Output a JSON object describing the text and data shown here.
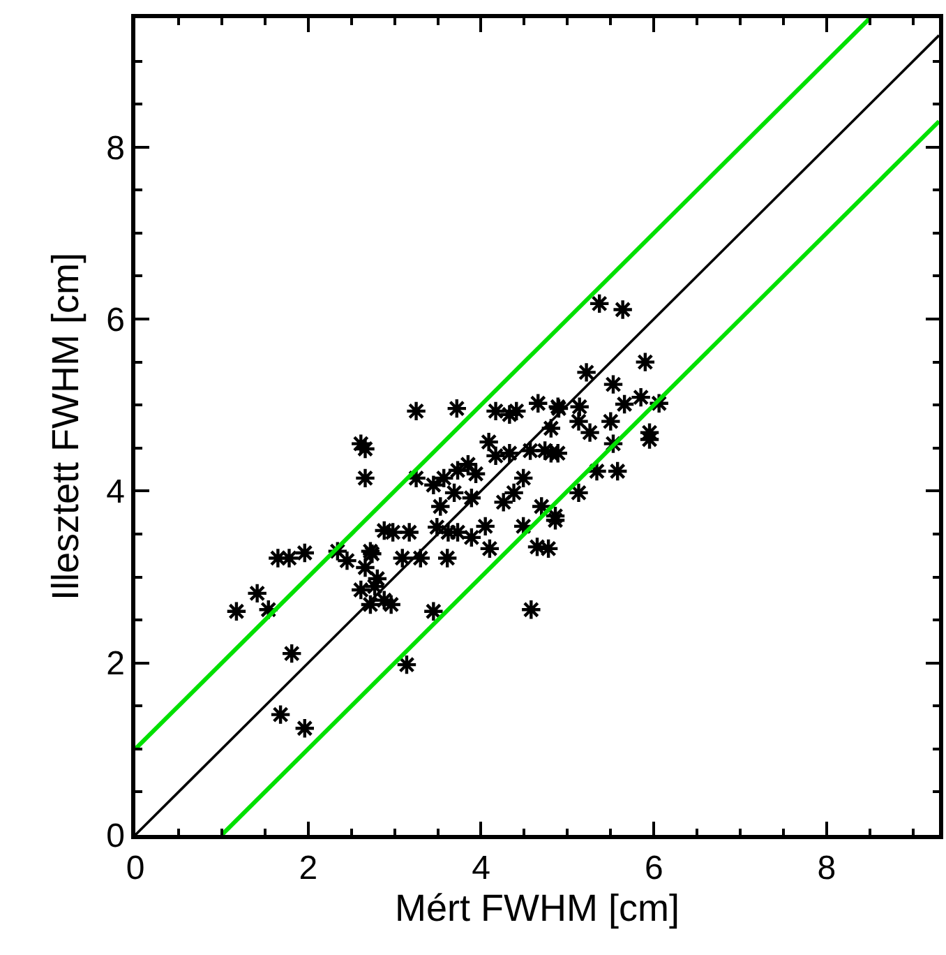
{
  "chart_data": {
    "type": "scatter",
    "xlabel": "Mért FWHM [cm]",
    "ylabel": "Illesztett FWHM [cm]",
    "xlim": [
      0,
      9.3
    ],
    "ylim": [
      0,
      9.5
    ],
    "xticks": [
      0,
      2,
      4,
      6,
      8
    ],
    "yticks": [
      0,
      2,
      4,
      6,
      8
    ],
    "grid": false,
    "series": [
      {
        "color": "#000000",
        "marker": "cross",
        "x": [
          1.17,
          1.41,
          1.54,
          1.81,
          1.68,
          1.96,
          1.65,
          1.78,
          1.96,
          2.34,
          2.45,
          2.72,
          2.66,
          2.61,
          2.66,
          2.66,
          3.25,
          3.72,
          4.17,
          4.33,
          4.41,
          4.66,
          4.89,
          3.25,
          2.61,
          2.77,
          2.88,
          2.72,
          2.96,
          2.8,
          2.74,
          2.88,
          2.98,
          3.17,
          3.09,
          3.3,
          3.61,
          3.45,
          3.14,
          4.58,
          3.49,
          3.62,
          3.73,
          3.89,
          4.05,
          4.1,
          3.45,
          3.57,
          3.73,
          3.85,
          3.94,
          3.53,
          3.69,
          3.89,
          4.09,
          4.17,
          4.33,
          4.49,
          4.38,
          4.26,
          4.57,
          4.74,
          4.89,
          4.81,
          4.7,
          4.86,
          4.49,
          4.65,
          4.78,
          5.37,
          5.64,
          5.9,
          5.22,
          5.53,
          4.9,
          5.14,
          5.66,
          5.85,
          6.06,
          5.13,
          5.26,
          5.5,
          5.95,
          5.95,
          4.81,
          5.53,
          5.34,
          5.58,
          5.13,
          4.86
        ],
        "values": [
          2.6,
          2.81,
          2.62,
          2.11,
          1.4,
          1.24,
          3.22,
          3.22,
          3.28,
          3.3,
          3.19,
          3.3,
          3.11,
          4.55,
          4.49,
          4.15,
          4.93,
          4.96,
          4.93,
          4.89,
          4.93,
          5.02,
          4.98,
          4.15,
          2.85,
          2.89,
          2.73,
          2.68,
          2.68,
          2.98,
          3.27,
          3.54,
          3.52,
          3.52,
          3.22,
          3.22,
          3.22,
          2.6,
          1.98,
          2.62,
          3.58,
          3.52,
          3.52,
          3.46,
          3.59,
          3.33,
          4.07,
          4.15,
          4.24,
          4.31,
          4.2,
          3.82,
          3.98,
          3.92,
          4.57,
          4.41,
          4.44,
          4.15,
          3.98,
          3.87,
          4.47,
          4.47,
          4.44,
          4.73,
          3.82,
          3.71,
          3.59,
          3.35,
          3.33,
          6.18,
          6.11,
          5.5,
          5.38,
          5.24,
          4.96,
          4.98,
          5.01,
          5.09,
          5.02,
          4.81,
          4.68,
          4.81,
          4.68,
          4.6,
          4.44,
          4.55,
          4.23,
          4.23,
          3.98,
          3.66
        ]
      },
      {
        "type": "line",
        "marker": "none",
        "color": "#000000",
        "x": [
          0,
          9.3
        ],
        "values": [
          0,
          9.3
        ]
      },
      {
        "type": "line",
        "marker": "none",
        "color": "#00e000",
        "x": [
          0,
          8.5
        ],
        "values": [
          1,
          9.5
        ]
      },
      {
        "type": "line",
        "marker": "none",
        "color": "#00e000",
        "x": [
          1,
          9.3
        ],
        "values": [
          0,
          8.3
        ]
      }
    ]
  }
}
